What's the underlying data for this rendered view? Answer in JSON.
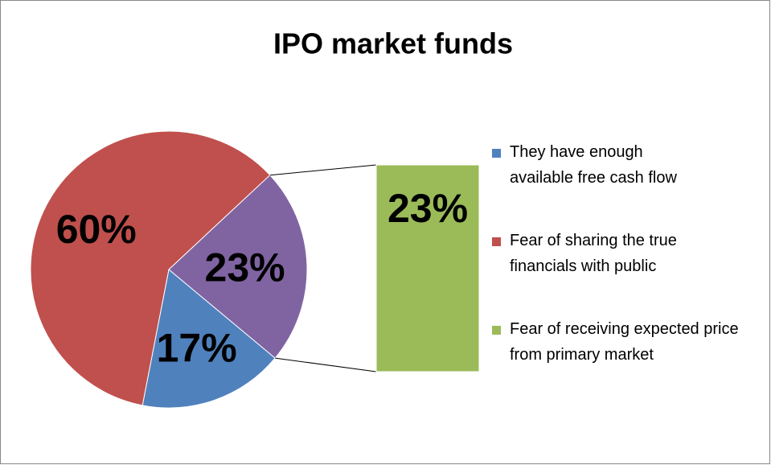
{
  "chart_data": {
    "type": "pie",
    "title": "IPO market funds",
    "categories": [
      "They have enough available free cash flow",
      "Fear of sharing the true financials with public",
      "Fear of receiving expected price from primary market"
    ],
    "values": [
      17,
      60,
      23
    ],
    "value_labels": [
      "17%",
      "60%",
      "23%"
    ],
    "colors": [
      "#4f81bd",
      "#c0504d",
      "#9bbb59"
    ],
    "other_color": "#8064a2",
    "legend": "right"
  }
}
